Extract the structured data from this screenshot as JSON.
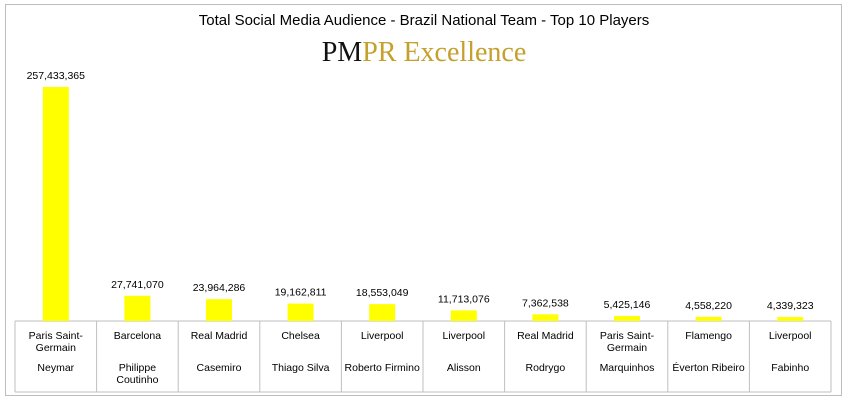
{
  "title": "Total Social Media Audience - Brazil National Team - Top 10 Players",
  "logo": {
    "bold": "PM",
    "rest": "PR Excellence"
  },
  "chart_data": {
    "type": "bar",
    "title": "Total Social Media Audience - Brazil National Team - Top 10 Players",
    "categories": [
      {
        "club": [
          "Paris Saint-",
          "Germain"
        ],
        "player": [
          "Neymar"
        ]
      },
      {
        "club": [
          "Barcelona"
        ],
        "player": [
          "Philippe",
          "Coutinho"
        ]
      },
      {
        "club": [
          "Real Madrid"
        ],
        "player": [
          "Casemiro"
        ]
      },
      {
        "club": [
          "Chelsea"
        ],
        "player": [
          "Thiago Silva"
        ]
      },
      {
        "club": [
          "Liverpool"
        ],
        "player": [
          "Roberto Firmino"
        ]
      },
      {
        "club": [
          "Liverpool"
        ],
        "player": [
          "Alisson"
        ]
      },
      {
        "club": [
          "Real Madrid"
        ],
        "player": [
          "Rodrygo"
        ]
      },
      {
        "club": [
          "Paris Saint-",
          "Germain"
        ],
        "player": [
          "Marquinhos"
        ]
      },
      {
        "club": [
          "Flamengo"
        ],
        "player": [
          "Éverton Ribeiro"
        ]
      },
      {
        "club": [
          "Liverpool"
        ],
        "player": [
          "Fabinho"
        ]
      }
    ],
    "values": [
      257433365,
      27741070,
      23964286,
      19162811,
      18553049,
      11713076,
      7362538,
      5425146,
      4558220,
      4339323
    ],
    "value_labels": [
      "257,433,365",
      "27,741,070",
      "23,964,286",
      "19,162,811",
      "18,553,049",
      "11,713,076",
      "7,362,538",
      "5,425,146",
      "4,558,220",
      "4,339,323"
    ],
    "ylim": [
      0,
      260000000
    ],
    "bar_color": "#ffff00",
    "grid": false,
    "legend": "none"
  }
}
